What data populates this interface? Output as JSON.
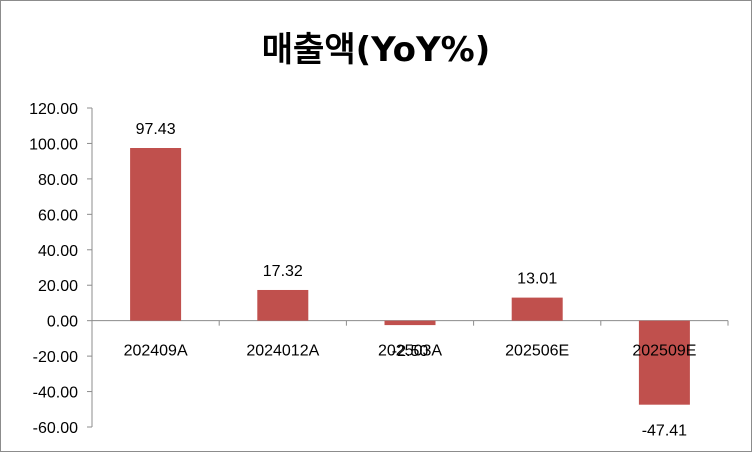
{
  "chart_data": {
    "type": "bar",
    "title": "매출액(YoY%)",
    "categories": [
      "202409A",
      "2024012A",
      "202503A",
      "202506E",
      "202509E"
    ],
    "values": [
      97.43,
      17.32,
      -2.5,
      13.01,
      -47.41
    ],
    "data_labels": [
      "97.43",
      "17.32",
      "-2.50",
      "13.01",
      "-47.41"
    ],
    "yticks": [
      "120.00",
      "100.00",
      "80.00",
      "60.00",
      "40.00",
      "20.00",
      "0.00",
      "-20.00",
      "-40.00",
      "-60.00"
    ],
    "ylim": [
      -60,
      120
    ],
    "bar_color": "#c0504d",
    "grid": false,
    "legend": "none"
  }
}
